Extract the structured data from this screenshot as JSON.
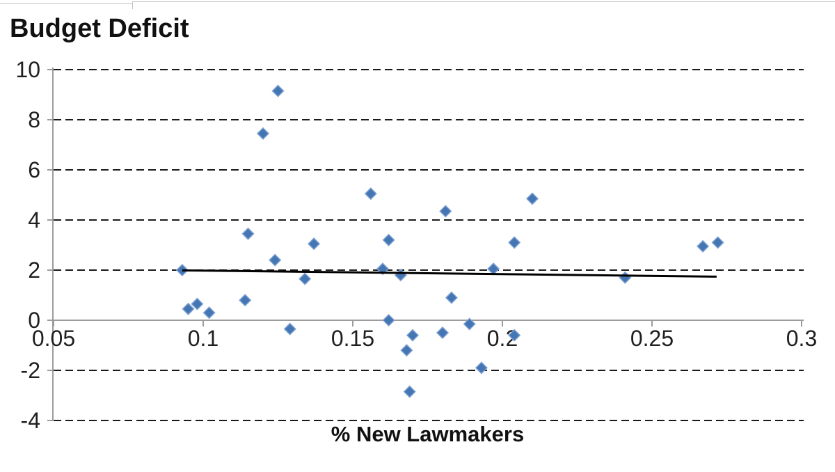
{
  "chart_data": {
    "type": "scatter",
    "title": "Budget Deficit",
    "xlabel": "% New Lawmakers",
    "ylabel": "",
    "xlim": [
      0.05,
      0.3
    ],
    "ylim": [
      -4,
      10
    ],
    "xticks": [
      0.05,
      0.1,
      0.15,
      0.2,
      0.25,
      0.3
    ],
    "xtick_labels": [
      "0.05",
      "0.1",
      "0.15",
      "0.2",
      "0.25",
      "0.3"
    ],
    "yticks": [
      -4,
      -2,
      0,
      2,
      4,
      6,
      8,
      10
    ],
    "ytick_labels": [
      "-4",
      "-2",
      "0",
      "2",
      "4",
      "6",
      "8",
      "10"
    ],
    "grid": "horizontal-dashed",
    "legend": "none",
    "marker": {
      "shape": "diamond",
      "size": 16
    },
    "points": [
      {
        "x": 0.093,
        "y": 2.0
      },
      {
        "x": 0.095,
        "y": 0.45
      },
      {
        "x": 0.098,
        "y": 0.65
      },
      {
        "x": 0.102,
        "y": 0.3
      },
      {
        "x": 0.114,
        "y": 0.8
      },
      {
        "x": 0.115,
        "y": 3.45
      },
      {
        "x": 0.12,
        "y": 7.45
      },
      {
        "x": 0.124,
        "y": 2.4
      },
      {
        "x": 0.125,
        "y": 9.15
      },
      {
        "x": 0.129,
        "y": -0.35
      },
      {
        "x": 0.134,
        "y": 1.65
      },
      {
        "x": 0.137,
        "y": 3.05
      },
      {
        "x": 0.156,
        "y": 5.05
      },
      {
        "x": 0.16,
        "y": 2.05
      },
      {
        "x": 0.162,
        "y": 3.2
      },
      {
        "x": 0.162,
        "y": 0.0
      },
      {
        "x": 0.166,
        "y": 1.8
      },
      {
        "x": 0.168,
        "y": -1.2
      },
      {
        "x": 0.169,
        "y": -2.85
      },
      {
        "x": 0.17,
        "y": -0.6
      },
      {
        "x": 0.18,
        "y": -0.5
      },
      {
        "x": 0.181,
        "y": 4.35
      },
      {
        "x": 0.183,
        "y": 0.9
      },
      {
        "x": 0.189,
        "y": -0.15
      },
      {
        "x": 0.193,
        "y": -1.9
      },
      {
        "x": 0.197,
        "y": 2.05
      },
      {
        "x": 0.204,
        "y": 3.1
      },
      {
        "x": 0.204,
        "y": -0.6
      },
      {
        "x": 0.21,
        "y": 4.85
      },
      {
        "x": 0.241,
        "y": 1.7
      },
      {
        "x": 0.267,
        "y": 2.95
      },
      {
        "x": 0.272,
        "y": 3.1
      }
    ],
    "trendline": {
      "x1": 0.093,
      "y1": 1.99,
      "x2": 0.2716,
      "y2": 1.74
    },
    "colors": {
      "marker_fill": "#4476b4",
      "marker_border": "#7ea1d1",
      "trend": "#000000",
      "grid": "#1a1a1a",
      "axis": "#9c9c9c",
      "tick_text": "#1f1f1f"
    }
  }
}
